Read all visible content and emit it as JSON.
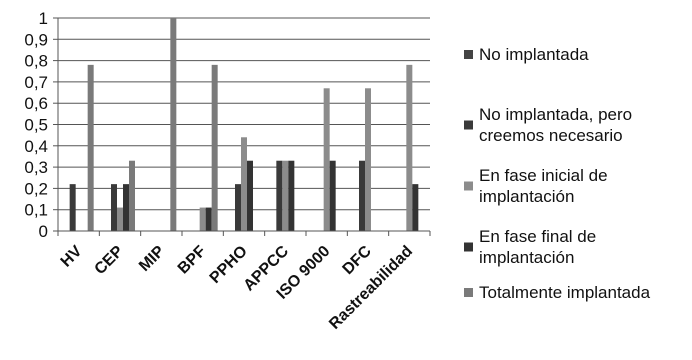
{
  "chart_data": {
    "type": "bar",
    "categories": [
      "HV",
      "CEP",
      "MIP",
      "BPF",
      "PPHO",
      "APPCC",
      "ISO 9000",
      "DFC",
      "Rastreabilidad"
    ],
    "series": [
      {
        "name": "No implantada",
        "color": "#444444",
        "values": [
          0,
          0,
          0,
          0,
          0,
          0,
          0,
          0,
          0
        ]
      },
      {
        "name": "No implantada, pero creemos necesario",
        "color": "#3a3a3a",
        "values": [
          0.22,
          0.22,
          0,
          0,
          0.22,
          0.33,
          0,
          0.33,
          0
        ]
      },
      {
        "name": "En fase inicial de implantación",
        "color": "#8c8c8c",
        "values": [
          0,
          0.11,
          0,
          0.11,
          0.44,
          0.33,
          0.67,
          0.67,
          0.78
        ]
      },
      {
        "name": "En fase final de implantación",
        "color": "#333333",
        "values": [
          0,
          0.22,
          0,
          0.11,
          0.33,
          0.33,
          0.33,
          0,
          0.22
        ]
      },
      {
        "name": "Totalmente implantada",
        "color": "#7a7a7a",
        "values": [
          0.78,
          0.33,
          1,
          0.78,
          0,
          0,
          0,
          0,
          0
        ]
      }
    ],
    "yticks": [
      "0",
      "0,1",
      "0,2",
      "0,3",
      "0,4",
      "0,5",
      "0,6",
      "0,7",
      "0,8",
      "0,9",
      "1"
    ],
    "ylim": [
      0,
      1
    ],
    "grid": true,
    "legend_position": "right",
    "legend_lines": [
      [
        "No implantada"
      ],
      [
        "No implantada, pero",
        "creemos necesario"
      ],
      [
        "En fase inicial de",
        "implantación"
      ],
      [
        "En fase final de",
        "implantación"
      ],
      [
        "Totalmente implantada"
      ]
    ]
  }
}
